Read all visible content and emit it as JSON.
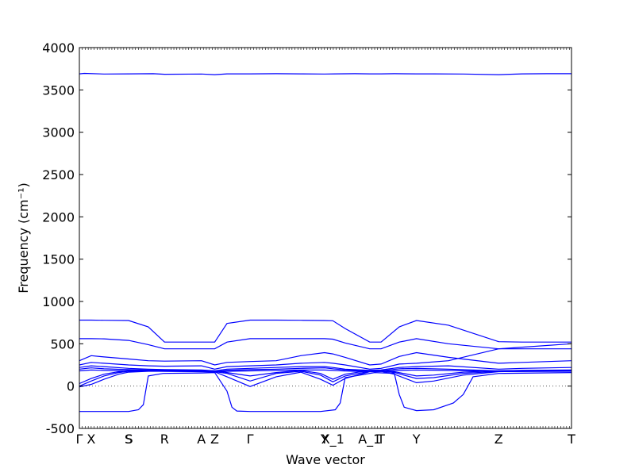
{
  "chart_data": {
    "type": "line",
    "xlabel": "Wave vector",
    "ylabel": "Frequency (cm⁻¹)",
    "ylim": [
      -500,
      4000
    ],
    "xlim": [
      0,
      1
    ],
    "yticks": [
      -500,
      0,
      500,
      1000,
      1500,
      2000,
      2500,
      3000,
      3500,
      4000
    ],
    "grid": false,
    "zero_line": 0,
    "high_symmetry_points": [
      {
        "label": "Γ",
        "x": 0.0
      },
      {
        "label": "X",
        "x": 0.024
      },
      {
        "label": "S",
        "x": 0.1
      },
      {
        "label": "S",
        "x": 0.101
      },
      {
        "label": "R",
        "x": 0.173
      },
      {
        "label": "A",
        "x": 0.248
      },
      {
        "label": "Z",
        "x": 0.275
      },
      {
        "label": "Γ",
        "x": 0.347
      },
      {
        "label": "Y",
        "x": 0.498
      },
      {
        "label": "X_1",
        "x": 0.515
      },
      {
        "label": "A_1",
        "x": 0.59
      },
      {
        "label": "T",
        "x": 0.613
      },
      {
        "label": "Y",
        "x": 0.685
      },
      {
        "label": "Z",
        "x": 0.852
      },
      {
        "label": "T",
        "x": 1.0
      }
    ],
    "series": [
      {
        "x": [
          0,
          0.01,
          0.05,
          0.1,
          0.15,
          0.173,
          0.248,
          0.275,
          0.3,
          0.347,
          0.4,
          0.45,
          0.498,
          0.52,
          0.56,
          0.59,
          0.613,
          0.64,
          0.685,
          0.72,
          0.78,
          0.852,
          0.9,
          0.95,
          1.0
        ],
        "y": [
          3690,
          3695,
          3688,
          3690,
          3692,
          3685,
          3688,
          3680,
          3690,
          3690,
          3692,
          3690,
          3688,
          3690,
          3692,
          3690,
          3690,
          3692,
          3690,
          3690,
          3688,
          3680,
          3690,
          3692,
          3692
        ]
      },
      {
        "x": [
          0,
          0.024,
          0.05,
          0.1,
          0.14,
          0.173,
          0.248,
          0.275,
          0.3,
          0.347,
          0.4,
          0.45,
          0.498,
          0.515,
          0.54,
          0.59,
          0.613,
          0.65,
          0.685,
          0.75,
          0.852,
          0.9,
          1.0
        ],
        "y": [
          780,
          780,
          778,
          775,
          700,
          520,
          520,
          520,
          740,
          780,
          780,
          778,
          775,
          772,
          680,
          520,
          520,
          700,
          775,
          720,
          525,
          520,
          520
        ]
      },
      {
        "x": [
          0,
          0.024,
          0.05,
          0.1,
          0.14,
          0.173,
          0.248,
          0.275,
          0.3,
          0.347,
          0.4,
          0.45,
          0.498,
          0.515,
          0.54,
          0.59,
          0.613,
          0.65,
          0.685,
          0.75,
          0.852,
          0.9,
          1.0
        ],
        "y": [
          560,
          560,
          558,
          540,
          490,
          440,
          440,
          440,
          520,
          560,
          560,
          560,
          560,
          555,
          510,
          440,
          440,
          520,
          560,
          500,
          440,
          440,
          440
        ]
      },
      {
        "x": [
          0,
          0.024,
          0.05,
          0.1,
          0.14,
          0.173,
          0.248,
          0.275,
          0.3,
          0.347,
          0.4,
          0.45,
          0.498,
          0.515,
          0.54,
          0.59,
          0.613,
          0.65,
          0.685,
          0.75,
          0.852,
          0.9,
          1.0
        ],
        "y": [
          300,
          360,
          345,
          320,
          300,
          295,
          300,
          250,
          280,
          290,
          300,
          360,
          395,
          380,
          340,
          250,
          260,
          350,
          395,
          340,
          270,
          280,
          300
        ]
      },
      {
        "x": [
          0,
          0.024,
          0.05,
          0.1,
          0.14,
          0.173,
          0.248,
          0.275,
          0.3,
          0.347,
          0.4,
          0.45,
          0.498,
          0.515,
          0.54,
          0.59,
          0.613,
          0.65,
          0.685,
          0.75,
          0.852,
          0.9,
          1.0
        ],
        "y": [
          250,
          280,
          270,
          250,
          240,
          235,
          240,
          200,
          230,
          240,
          250,
          270,
          280,
          270,
          250,
          200,
          210,
          260,
          270,
          300,
          440,
          460,
          500
        ]
      },
      {
        "x": [
          0,
          0.024,
          0.05,
          0.1,
          0.14,
          0.173,
          0.248,
          0.275,
          0.3,
          0.347,
          0.4,
          0.45,
          0.498,
          0.515,
          0.54,
          0.59,
          0.613,
          0.65,
          0.685,
          0.75,
          0.852,
          0.9,
          1.0
        ],
        "y": [
          220,
          240,
          230,
          210,
          200,
          195,
          190,
          180,
          200,
          210,
          220,
          230,
          230,
          220,
          200,
          185,
          190,
          220,
          230,
          240,
          200,
          210,
          220
        ]
      },
      {
        "x": [
          0,
          0.024,
          0.05,
          0.1,
          0.14,
          0.173,
          0.248,
          0.275,
          0.3,
          0.347,
          0.4,
          0.45,
          0.498,
          0.515,
          0.54,
          0.59,
          0.613,
          0.65,
          0.685,
          0.75,
          0.852,
          0.9,
          1.0
        ],
        "y": [
          200,
          215,
          205,
          195,
          190,
          185,
          180,
          170,
          185,
          195,
          200,
          210,
          215,
          205,
          190,
          175,
          180,
          205,
          210,
          200,
          180,
          185,
          190
        ]
      },
      {
        "x": [
          0,
          0.024,
          0.05,
          0.1,
          0.14,
          0.173,
          0.248,
          0.275,
          0.3,
          0.347,
          0.4,
          0.45,
          0.498,
          0.515,
          0.54,
          0.59,
          0.613,
          0.65,
          0.685,
          0.75,
          0.852,
          0.9,
          1.0
        ],
        "y": [
          180,
          190,
          185,
          180,
          178,
          175,
          172,
          165,
          175,
          180,
          185,
          190,
          190,
          185,
          178,
          170,
          172,
          185,
          190,
          185,
          172,
          175,
          180
        ]
      },
      {
        "x": [
          0,
          0.024,
          0.05,
          0.08,
          0.1,
          0.14,
          0.173,
          0.248,
          0.275,
          0.3,
          0.347,
          0.4,
          0.45,
          0.49,
          0.515,
          0.54,
          0.59,
          0.613,
          0.64,
          0.685,
          0.72,
          0.78,
          0.852,
          0.9,
          1.0
        ],
        "y": [
          0,
          60,
          120,
          160,
          175,
          180,
          178,
          175,
          170,
          150,
          60,
          150,
          175,
          130,
          50,
          120,
          175,
          178,
          160,
          90,
          100,
          150,
          175,
          178,
          180
        ]
      },
      {
        "x": [
          0,
          0.024,
          0.05,
          0.08,
          0.1,
          0.14,
          0.173,
          0.248,
          0.275,
          0.3,
          0.347,
          0.4,
          0.45,
          0.49,
          0.515,
          0.54,
          0.59,
          0.613,
          0.64,
          0.685,
          0.72,
          0.78,
          0.852,
          0.9,
          1.0
        ],
        "y": [
          -10,
          20,
          80,
          140,
          165,
          175,
          175,
          170,
          168,
          110,
          -5,
          110,
          165,
          80,
          10,
          90,
          170,
          175,
          140,
          40,
          60,
          130,
          170,
          172,
          175
        ]
      },
      {
        "x": [
          0,
          0.024,
          0.05,
          0.08,
          0.1,
          0.14,
          0.173,
          0.248,
          0.275,
          0.3,
          0.347,
          0.4,
          0.45,
          0.49,
          0.515,
          0.54,
          0.59,
          0.613,
          0.64,
          0.685,
          0.72,
          0.78,
          0.852,
          0.9,
          1.0
        ],
        "y": [
          30,
          90,
          140,
          170,
          185,
          190,
          188,
          185,
          182,
          160,
          120,
          160,
          185,
          150,
          80,
          140,
          185,
          188,
          170,
          120,
          130,
          165,
          182,
          184,
          186
        ]
      },
      {
        "x": [
          0,
          0.03,
          0.08,
          0.1,
          0.12,
          0.13,
          0.14,
          0.17,
          0.248,
          0.275,
          0.3,
          0.31,
          0.32,
          0.347,
          0.4,
          0.45,
          0.49,
          0.52,
          0.53,
          0.54,
          0.6,
          0.64,
          0.65,
          0.66,
          0.685,
          0.72,
          0.76,
          0.78,
          0.8,
          0.852,
          1.0
        ],
        "y": [
          -300,
          -300,
          -300,
          -300,
          -280,
          -220,
          120,
          150,
          155,
          160,
          -60,
          -250,
          -295,
          -300,
          -300,
          -300,
          -300,
          -280,
          -200,
          100,
          160,
          150,
          -100,
          -250,
          -290,
          -280,
          -200,
          -100,
          110,
          150,
          160
        ]
      }
    ]
  }
}
